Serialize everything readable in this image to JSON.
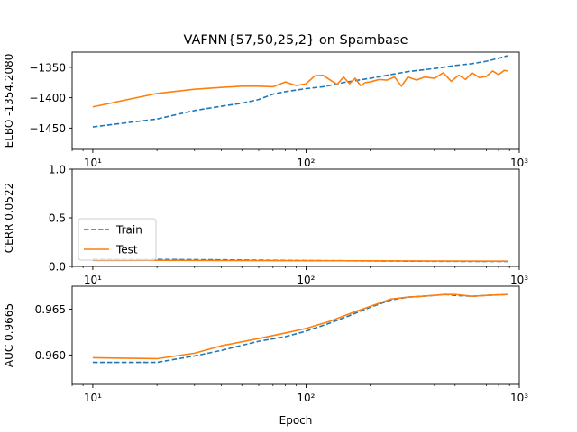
{
  "chart_data": [
    {
      "type": "line",
      "title": "VAFNN{57,50,25,2} on Spambase",
      "xlabel": "",
      "ylabel": "ELBO -1354.2080",
      "xscale": "log",
      "xlim": [
        8,
        1000
      ],
      "ylim": [
        -1485,
        -1325
      ],
      "yticks": [
        -1450,
        -1400,
        -1350
      ],
      "ytick_labels": [
        "−1450",
        "−1400",
        "−1350"
      ],
      "xticks": [
        10,
        100,
        1000
      ],
      "xtick_labels": [
        "10¹",
        "10²",
        "10³"
      ],
      "series": [
        {
          "name": "Train",
          "color": "#1f77b4",
          "style": "dashed",
          "x": [
            10,
            20,
            30,
            40,
            50,
            60,
            70,
            80,
            100,
            120,
            150,
            200,
            250,
            300,
            400,
            500,
            600,
            700,
            800,
            880
          ],
          "values": [
            -1448,
            -1435,
            -1421,
            -1414,
            -1409,
            -1403,
            -1394,
            -1390,
            -1385,
            -1382,
            -1375,
            -1368,
            -1362,
            -1357,
            -1352,
            -1347,
            -1344,
            -1340,
            -1335,
            -1331
          ]
        },
        {
          "name": "Test",
          "color": "#ff7f0e",
          "style": "solid",
          "x": [
            10,
            20,
            30,
            40,
            50,
            60,
            70,
            80,
            90,
            100,
            110,
            120,
            130,
            140,
            150,
            160,
            170,
            180,
            190,
            200,
            220,
            240,
            260,
            280,
            300,
            330,
            360,
            400,
            440,
            480,
            520,
            560,
            600,
            650,
            700,
            750,
            800,
            850,
            880
          ],
          "values": [
            -1415,
            -1393,
            -1386,
            -1383,
            -1381,
            -1381,
            -1382,
            -1374,
            -1380,
            -1377,
            -1364,
            -1363,
            -1371,
            -1378,
            -1366,
            -1377,
            -1368,
            -1380,
            -1375,
            -1374,
            -1370,
            -1371,
            -1366,
            -1381,
            -1366,
            -1371,
            -1366,
            -1368,
            -1359,
            -1373,
            -1363,
            -1370,
            -1359,
            -1367,
            -1365,
            -1356,
            -1362,
            -1355,
            -1356
          ]
        }
      ]
    },
    {
      "type": "line",
      "title": "",
      "xlabel": "",
      "ylabel": "CERR 0.0522",
      "xscale": "log",
      "xlim": [
        8,
        1000
      ],
      "ylim": [
        0,
        1
      ],
      "yticks": [
        0,
        0.5,
        1
      ],
      "ytick_labels": [
        "0.0",
        "0.5",
        "1.0"
      ],
      "xticks": [
        10,
        100,
        1000
      ],
      "xtick_labels": [
        "10¹",
        "10²",
        "10³"
      ],
      "legend": {
        "position": "lower-left",
        "entries": [
          "Train",
          "Test"
        ]
      },
      "series": [
        {
          "name": "Train",
          "color": "#1f77b4",
          "style": "dashed",
          "x": [
            10,
            20,
            40,
            70,
            100,
            150,
            200,
            300,
            500,
            880
          ],
          "values": [
            0.075,
            0.072,
            0.068,
            0.063,
            0.06,
            0.058,
            0.056,
            0.054,
            0.052,
            0.051
          ]
        },
        {
          "name": "Test",
          "color": "#ff7f0e",
          "style": "solid",
          "x": [
            10,
            20,
            40,
            70,
            100,
            150,
            200,
            300,
            500,
            880
          ],
          "values": [
            0.062,
            0.063,
            0.061,
            0.06,
            0.059,
            0.058,
            0.057,
            0.056,
            0.055,
            0.054
          ]
        }
      ]
    },
    {
      "type": "line",
      "title": "",
      "xlabel": "Epoch",
      "ylabel": "AUC 0.9665",
      "xscale": "log",
      "xlim": [
        8,
        1000
      ],
      "ylim": [
        0.9568,
        0.9675
      ],
      "yticks": [
        0.96,
        0.965
      ],
      "ytick_labels": [
        "0.960",
        "0.965"
      ],
      "xticks": [
        10,
        100,
        1000
      ],
      "xtick_labels": [
        "10¹",
        "10²",
        "10³"
      ],
      "series": [
        {
          "name": "Train",
          "color": "#1f77b4",
          "style": "dashed",
          "x": [
            10,
            20,
            30,
            40,
            60,
            80,
            100,
            130,
            160,
            200,
            250,
            300,
            350,
            400,
            450,
            500,
            600,
            700,
            880
          ],
          "values": [
            0.9592,
            0.9592,
            0.9599,
            0.9605,
            0.9615,
            0.962,
            0.9626,
            0.9635,
            0.9643,
            0.9652,
            0.966,
            0.9663,
            0.9664,
            0.9665,
            0.9666,
            0.9665,
            0.9664,
            0.9665,
            0.9666
          ]
        },
        {
          "name": "Test",
          "color": "#ff7f0e",
          "style": "solid",
          "x": [
            10,
            20,
            30,
            40,
            60,
            80,
            100,
            130,
            160,
            200,
            250,
            300,
            350,
            400,
            450,
            500,
            600,
            700,
            880
          ],
          "values": [
            0.9597,
            0.9596,
            0.9602,
            0.961,
            0.9618,
            0.9624,
            0.9629,
            0.9637,
            0.9645,
            0.9653,
            0.9661,
            0.9663,
            0.9664,
            0.9665,
            0.9666,
            0.9666,
            0.9664,
            0.9665,
            0.9666
          ]
        }
      ]
    }
  ]
}
